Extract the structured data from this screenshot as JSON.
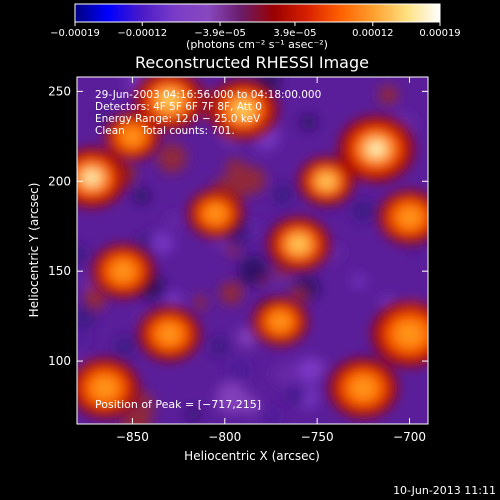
{
  "chart_data": {
    "type": "heatmap",
    "title": "Reconstructed RHESSI Image",
    "xlabel": "Heliocentric X (arcsec)",
    "ylabel": "Heliocentric Y (arcsec)",
    "xlim": [
      -880,
      -690
    ],
    "ylim": [
      65,
      258
    ],
    "x_ticks": [
      {
        "value": -850,
        "label": "−850"
      },
      {
        "value": -800,
        "label": "−800"
      },
      {
        "value": -750,
        "label": "−750"
      },
      {
        "value": -700,
        "label": "−700"
      }
    ],
    "y_ticks": [
      {
        "value": 100,
        "label": "100"
      },
      {
        "value": 150,
        "label": "150"
      },
      {
        "value": 200,
        "label": "200"
      },
      {
        "value": 250,
        "label": "250"
      }
    ],
    "colorbar": {
      "range": [
        -0.00019,
        0.00019
      ],
      "ticks": [
        {
          "value": -0.00019,
          "label": "−0.00019"
        },
        {
          "value": -0.00012,
          "label": "−0.00012"
        },
        {
          "value": -3.9e-05,
          "label": "−3.9e−05"
        },
        {
          "value": 3.9e-05,
          "label": "3.9e−05"
        },
        {
          "value": 0.00012,
          "label": "0.00012"
        },
        {
          "value": 0.00019,
          "label": "0.00019"
        }
      ],
      "unit_label": "(photons cm⁻² s⁻¹ asec⁻²)"
    },
    "info_lines": [
      "29-Jun-2003 04:16:56.000 to 04:18:00.000",
      "Detectors: 4F 5F 6F 7F 8F, Att 0",
      "Energy Range: 12.0 − 25.0 keV",
      "Clean     Total counts: 701."
    ],
    "peak_label": "Position of Peak = [−717,215]",
    "peak_position": [
      -717,
      215
    ],
    "bright_sources": [
      {
        "x": -872,
        "y": 202,
        "r": 10,
        "level": 1.0
      },
      {
        "x": -718,
        "y": 218,
        "r": 11,
        "level": 1.0
      },
      {
        "x": -760,
        "y": 165,
        "r": 9,
        "level": 0.85
      },
      {
        "x": -790,
        "y": 240,
        "r": 10,
        "level": 0.8
      },
      {
        "x": -830,
        "y": 245,
        "r": 10,
        "level": 0.75
      },
      {
        "x": -855,
        "y": 150,
        "r": 9,
        "level": 0.7
      },
      {
        "x": -830,
        "y": 115,
        "r": 9,
        "level": 0.65
      },
      {
        "x": -700,
        "y": 115,
        "r": 11,
        "level": 0.7
      },
      {
        "x": -725,
        "y": 85,
        "r": 10,
        "level": 0.65
      },
      {
        "x": -770,
        "y": 122,
        "r": 8,
        "level": 0.55
      },
      {
        "x": -865,
        "y": 85,
        "r": 10,
        "level": 0.55
      },
      {
        "x": -745,
        "y": 200,
        "r": 8,
        "level": 0.75
      },
      {
        "x": -805,
        "y": 182,
        "r": 8,
        "level": 0.5
      },
      {
        "x": -700,
        "y": 180,
        "r": 9,
        "level": 0.55
      },
      {
        "x": -850,
        "y": 225,
        "r": 8,
        "level": 0.45
      }
    ],
    "colormap": [
      "#000080",
      "#0000ff",
      "#4a1ac8",
      "#7a3cc8",
      "#8848c0",
      "#6a1c6a",
      "#9a0000",
      "#d82000",
      "#ff6000",
      "#ffa030",
      "#ffe080",
      "#ffffff"
    ]
  },
  "footer": {
    "timestamp": "10-Jun-2013 11:11"
  }
}
